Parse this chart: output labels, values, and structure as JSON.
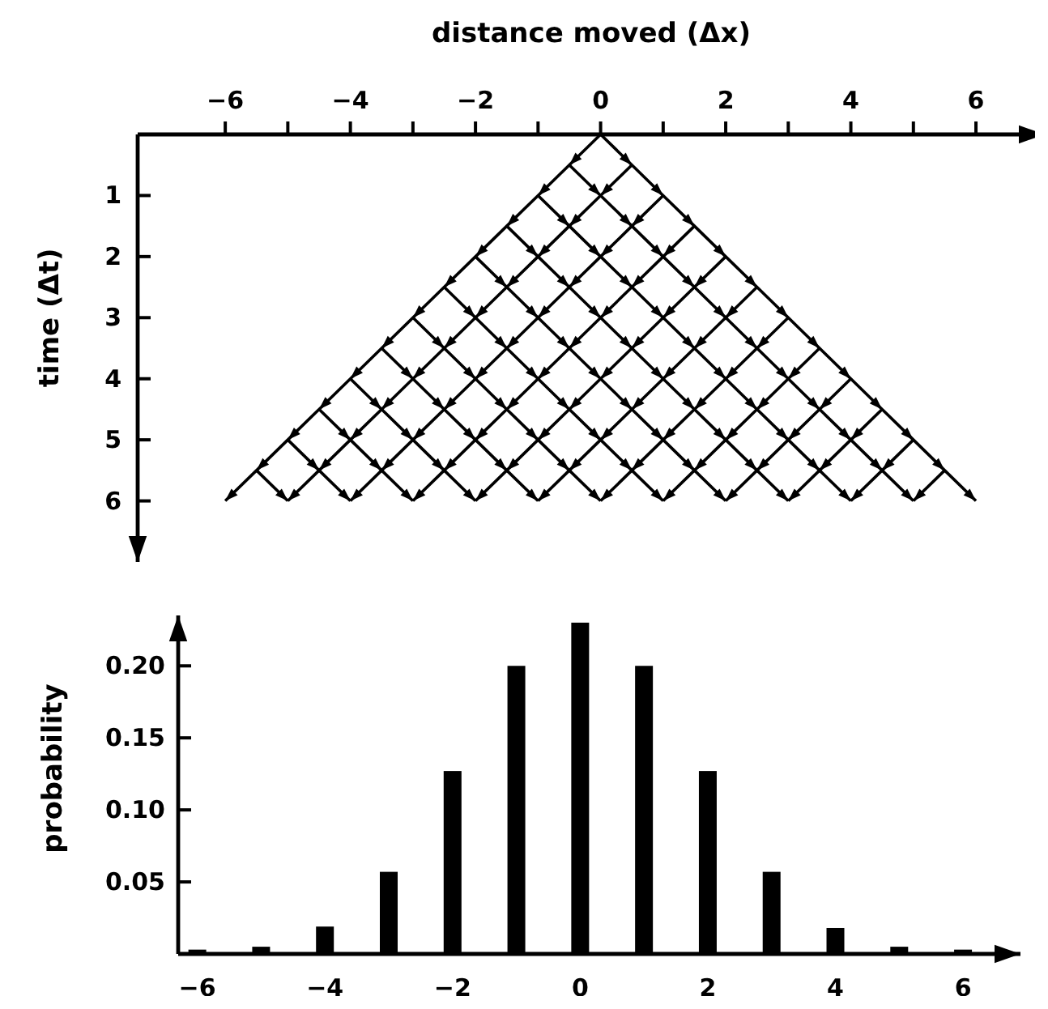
{
  "chart_data": [
    {
      "type": "line",
      "xlabel": "distance moved (Δx)",
      "ylabel": "time (Δt)",
      "xlim": [
        -7.4,
        7.1
      ],
      "ylim": [
        7,
        0
      ],
      "color": "#000000",
      "xticks": [
        -6,
        {
          "value": -5,
          "label": null
        },
        -4,
        {
          "value": -3,
          "label": null
        },
        -2,
        {
          "value": -1,
          "label": null
        },
        0,
        {
          "value": 1,
          "label": null
        },
        2,
        {
          "value": 3,
          "label": null
        },
        4,
        {
          "value": 5,
          "label": null
        },
        6
      ],
      "yticks": [
        1,
        2,
        3,
        4,
        5,
        6
      ],
      "series": [
        {
          "x": [
            0,
            0.5,
            1,
            1.5,
            2,
            2.5,
            3,
            3.5,
            4,
            4.5,
            5,
            5.5,
            6
          ],
          "values": [
            0,
            0.5,
            1,
            1.5,
            2,
            2.5,
            3,
            3.5,
            4,
            4.5,
            5,
            5.5,
            6
          ]
        },
        {
          "x": [
            -0.5,
            0,
            0.5,
            1,
            1.5,
            2,
            2.5,
            3,
            3.5,
            4,
            4.5,
            5
          ],
          "values": [
            0.5,
            1,
            1.5,
            2,
            2.5,
            3,
            3.5,
            4,
            4.5,
            5,
            5.5,
            6
          ]
        },
        {
          "x": [
            -1,
            -0.5,
            0,
            0.5,
            1,
            1.5,
            2,
            2.5,
            3,
            3.5,
            4
          ],
          "values": [
            1,
            1.5,
            2,
            2.5,
            3,
            3.5,
            4,
            4.5,
            5,
            5.5,
            6
          ]
        },
        {
          "x": [
            -1.5,
            -1,
            -0.5,
            0,
            0.5,
            1,
            1.5,
            2,
            2.5,
            3
          ],
          "values": [
            1.5,
            2,
            2.5,
            3,
            3.5,
            4,
            4.5,
            5,
            5.5,
            6
          ]
        },
        {
          "x": [
            -2,
            -1.5,
            -1,
            -0.5,
            0,
            0.5,
            1,
            1.5,
            2
          ],
          "values": [
            2,
            2.5,
            3,
            3.5,
            4,
            4.5,
            5,
            5.5,
            6
          ]
        },
        {
          "x": [
            -2.5,
            -2,
            -1.5,
            -1,
            -0.5,
            0,
            0.5,
            1
          ],
          "values": [
            2.5,
            3,
            3.5,
            4,
            4.5,
            5,
            5.5,
            6
          ]
        },
        {
          "x": [
            -3,
            -2.5,
            -2,
            -1.5,
            -1,
            -0.5,
            0
          ],
          "values": [
            3,
            3.5,
            4,
            4.5,
            5,
            5.5,
            6
          ]
        },
        {
          "x": [
            -3.5,
            -3,
            -2.5,
            -2,
            -1.5,
            -1
          ],
          "values": [
            3.5,
            4,
            4.5,
            5,
            5.5,
            6
          ]
        },
        {
          "x": [
            -4,
            -3.5,
            -3,
            -2.5,
            -2
          ],
          "values": [
            4,
            4.5,
            5,
            5.5,
            6
          ]
        },
        {
          "x": [
            -4.5,
            -4,
            -3.5,
            -3
          ],
          "values": [
            4.5,
            5,
            5.5,
            6
          ]
        },
        {
          "x": [
            -5,
            -4.5,
            -4
          ],
          "values": [
            5,
            5.5,
            6
          ]
        },
        {
          "x": [
            -5.5,
            -5
          ],
          "values": [
            5.5,
            6
          ]
        },
        {
          "x": [
            0,
            -0.5,
            -1,
            -1.5,
            -2,
            -2.5,
            -3,
            -3.5,
            -4,
            -4.5,
            -5,
            -5.5,
            -6
          ],
          "values": [
            0,
            0.5,
            1,
            1.5,
            2,
            2.5,
            3,
            3.5,
            4,
            4.5,
            5,
            5.5,
            6
          ]
        },
        {
          "x": [
            0.5,
            0,
            -0.5,
            -1,
            -1.5,
            -2,
            -2.5,
            -3,
            -3.5,
            -4,
            -4.5,
            -5
          ],
          "values": [
            0.5,
            1,
            1.5,
            2,
            2.5,
            3,
            3.5,
            4,
            4.5,
            5,
            5.5,
            6
          ]
        },
        {
          "x": [
            1,
            0.5,
            0,
            -0.5,
            -1,
            -1.5,
            -2,
            -2.5,
            -3,
            -3.5,
            -4
          ],
          "values": [
            1,
            1.5,
            2,
            2.5,
            3,
            3.5,
            4,
            4.5,
            5,
            5.5,
            6
          ]
        },
        {
          "x": [
            1.5,
            1,
            0.5,
            0,
            -0.5,
            -1,
            -1.5,
            -2,
            -2.5,
            -3
          ],
          "values": [
            1.5,
            2,
            2.5,
            3,
            3.5,
            4,
            4.5,
            5,
            5.5,
            6
          ]
        },
        {
          "x": [
            2,
            1.5,
            1,
            0.5,
            0,
            -0.5,
            -1,
            -1.5,
            -2
          ],
          "values": [
            2,
            2.5,
            3,
            3.5,
            4,
            4.5,
            5,
            5.5,
            6
          ]
        },
        {
          "x": [
            2.5,
            2,
            1.5,
            1,
            0.5,
            0,
            -0.5,
            -1
          ],
          "values": [
            2.5,
            3,
            3.5,
            4,
            4.5,
            5,
            5.5,
            6
          ]
        },
        {
          "x": [
            3,
            2.5,
            2,
            1.5,
            1,
            0.5,
            0
          ],
          "values": [
            3,
            3.5,
            4,
            4.5,
            5,
            5.5,
            6
          ]
        },
        {
          "x": [
            3.5,
            3,
            2.5,
            2,
            1.5,
            1
          ],
          "values": [
            3.5,
            4,
            4.5,
            5,
            5.5,
            6
          ]
        },
        {
          "x": [
            4,
            3.5,
            3,
            2.5,
            2
          ],
          "values": [
            4,
            4.5,
            5,
            5.5,
            6
          ]
        },
        {
          "x": [
            4.5,
            4,
            3.5,
            3
          ],
          "values": [
            4.5,
            5,
            5.5,
            6
          ]
        },
        {
          "x": [
            5,
            4.5,
            4
          ],
          "values": [
            5,
            5.5,
            6
          ]
        },
        {
          "x": [
            5.5,
            5
          ],
          "values": [
            5.5,
            6
          ]
        }
      ]
    },
    {
      "type": "bar",
      "ylabel": "probability",
      "x": [
        -6,
        -5,
        -4,
        -3,
        -2,
        -1,
        0,
        1,
        2,
        3,
        4,
        5,
        6
      ],
      "values": [
        0.003,
        0.005,
        0.019,
        0.057,
        0.127,
        0.2,
        0.23,
        0.2,
        0.127,
        0.057,
        0.018,
        0.005,
        0.003
      ],
      "color": "#000000",
      "xlim": [
        -6.3,
        6.9
      ],
      "ylim": [
        0,
        0.235
      ],
      "xticks": [
        -6,
        -4,
        -2,
        0,
        2,
        4,
        6
      ],
      "yticks": [
        0.05,
        {
          "value": 0.1,
          "label": "0.10"
        },
        0.15,
        {
          "value": 0.2,
          "label": "0.20"
        }
      ]
    }
  ]
}
